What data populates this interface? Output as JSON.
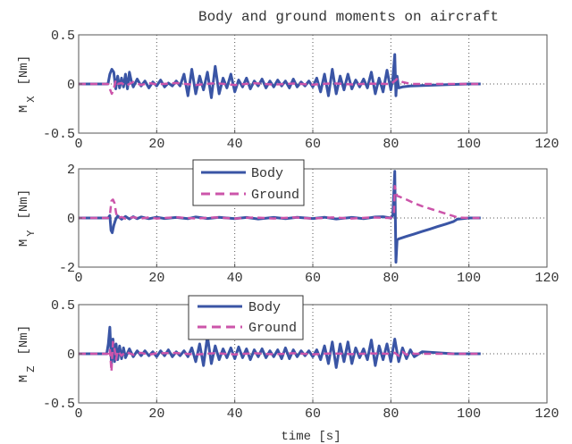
{
  "colors": {
    "body": "#3a55a5",
    "ground": "#cc55aa",
    "axis": "#555555",
    "grid": "#555555"
  },
  "figure": {
    "xlabel": "time [s]"
  },
  "chart_data": [
    {
      "type": "line",
      "title": "Body and ground moments on aircraft",
      "ylabel_main": "M",
      "ylabel_sub": "X",
      "ylabel_unit": "[Nm]",
      "xlim": [
        0,
        120
      ],
      "ylim": [
        -0.5,
        0.5
      ],
      "xticks": [
        "0",
        "20",
        "40",
        "60",
        "80",
        "100",
        "120"
      ],
      "yticks": [
        {
          "v": 0.5,
          "label": "0.5"
        },
        {
          "v": 0,
          "label": "0"
        },
        {
          "v": -0.5,
          "label": "-0.5"
        }
      ],
      "grid": true,
      "legend": null,
      "series": [
        {
          "name": "Body",
          "key": "body",
          "dashed": false,
          "x": [
            0,
            7.5,
            8,
            8.5,
            9,
            9.5,
            10,
            10.5,
            11,
            11.5,
            12,
            12.5,
            13,
            13.5,
            14,
            15,
            16,
            17,
            18,
            19,
            20,
            21,
            22,
            23,
            24,
            25,
            26,
            27,
            28,
            29,
            30,
            31,
            32,
            33,
            34,
            35,
            36,
            37,
            38,
            39,
            40,
            41,
            42,
            43,
            44,
            45,
            46,
            47,
            48,
            49,
            50,
            51,
            52,
            53,
            54,
            55,
            56,
            57,
            58,
            59,
            60,
            61,
            62,
            63,
            64,
            65,
            66,
            67,
            68,
            69,
            70,
            71,
            72,
            73,
            74,
            75,
            76,
            77,
            78,
            79,
            80,
            80.5,
            81,
            81.3,
            81.6,
            82,
            83,
            85,
            88,
            92,
            96,
            100,
            103
          ],
          "y": [
            0,
            0,
            0.1,
            0.15,
            0.12,
            -0.05,
            0.08,
            -0.04,
            0.06,
            -0.03,
            0.1,
            -0.05,
            0.12,
            0.03,
            -0.03,
            0.05,
            -0.02,
            0.03,
            -0.04,
            0.02,
            -0.02,
            0.04,
            -0.03,
            0.01,
            -0.02,
            0.03,
            -0.02,
            0.1,
            -0.12,
            0.15,
            -0.1,
            0.08,
            -0.06,
            0.12,
            -0.14,
            0.18,
            -0.1,
            0.06,
            -0.04,
            0.1,
            -0.08,
            0.04,
            -0.03,
            0.06,
            -0.05,
            0.03,
            -0.02,
            0.05,
            -0.04,
            0.03,
            -0.03,
            0.04,
            -0.02,
            0.03,
            -0.04,
            0.05,
            -0.03,
            0.02,
            -0.02,
            0.03,
            -0.03,
            0.06,
            -0.08,
            0.1,
            -0.12,
            0.15,
            -0.1,
            0.08,
            -0.06,
            0.1,
            -0.05,
            0.04,
            -0.03,
            0.05,
            -0.04,
            0.12,
            -0.1,
            0.06,
            -0.08,
            0.14,
            -0.06,
            0.05,
            0.3,
            -0.12,
            0.08,
            -0.04,
            -0.03,
            -0.02,
            -0.015,
            -0.01,
            -0.005,
            0,
            0
          ]
        },
        {
          "name": "Ground",
          "key": "ground",
          "dashed": true,
          "x": [
            0,
            7.5,
            8,
            8.5,
            9,
            9.5,
            10,
            11,
            12,
            14,
            16,
            18,
            20,
            25,
            30,
            35,
            40,
            45,
            50,
            55,
            60,
            65,
            70,
            75,
            80,
            81,
            81.5,
            82,
            83,
            84,
            85,
            86,
            88,
            103
          ],
          "y": [
            0,
            0,
            -0.05,
            -0.1,
            -0.05,
            0.04,
            0,
            0.01,
            -0.02,
            0.02,
            -0.01,
            0.01,
            -0.005,
            0.01,
            -0.01,
            0.008,
            -0.01,
            0.008,
            -0.006,
            0.005,
            -0.006,
            0.006,
            -0.005,
            0.004,
            0,
            0.03,
            0.05,
            0.04,
            0.02,
            0.01,
            0.005,
            0,
            0,
            0
          ]
        }
      ]
    },
    {
      "type": "line",
      "ylabel_main": "M",
      "ylabel_sub": "Y",
      "ylabel_unit": "[Nm]",
      "xlim": [
        0,
        120
      ],
      "ylim": [
        -2,
        2
      ],
      "xticks": [
        "0",
        "20",
        "40",
        "60",
        "80",
        "100",
        "120"
      ],
      "yticks": [
        {
          "v": 2,
          "label": "2"
        },
        {
          "v": 0,
          "label": "0"
        },
        {
          "v": -2,
          "label": "-2"
        }
      ],
      "grid": true,
      "legend": "top-left",
      "series": [
        {
          "name": "Body",
          "key": "body",
          "dashed": false,
          "x": [
            0,
            7.5,
            8,
            8.3,
            8.6,
            9,
            9.5,
            10,
            11,
            12,
            13,
            14,
            15,
            16,
            18,
            20,
            22,
            25,
            28,
            30,
            33,
            36,
            40,
            43,
            46,
            50,
            53,
            56,
            60,
            63,
            66,
            70,
            73,
            76,
            78,
            80,
            80.5,
            81,
            81.3,
            81.6,
            82,
            84,
            86,
            88,
            90,
            92,
            94,
            96,
            97,
            100,
            103
          ],
          "y": [
            0,
            0,
            0.1,
            -0.5,
            -0.6,
            -0.3,
            -0.05,
            0.08,
            -0.05,
            0.06,
            -0.04,
            0.05,
            -0.03,
            0.04,
            -0.03,
            0.03,
            -0.02,
            0.02,
            -0.03,
            0.04,
            -0.02,
            0.03,
            -0.03,
            0.02,
            -0.04,
            0.02,
            -0.03,
            0.03,
            -0.02,
            0.03,
            -0.04,
            0.02,
            -0.03,
            0.04,
            0.05,
            0,
            0.1,
            1.9,
            -1.8,
            -0.9,
            -0.85,
            -0.75,
            -0.65,
            -0.55,
            -0.45,
            -0.35,
            -0.25,
            -0.15,
            -0.05,
            0,
            0
          ]
        },
        {
          "name": "Ground",
          "key": "ground",
          "dashed": true,
          "x": [
            0,
            7.5,
            8,
            8.4,
            8.8,
            9.2,
            9.6,
            10,
            11,
            12,
            14,
            16,
            18,
            20,
            25,
            30,
            35,
            40,
            45,
            50,
            55,
            60,
            65,
            70,
            75,
            80,
            80.8,
            81,
            81.3,
            81.6,
            82,
            84,
            86,
            88,
            90,
            92,
            94,
            96,
            97,
            100,
            103
          ],
          "y": [
            0,
            0,
            0.1,
            0.7,
            0.75,
            0.6,
            0.2,
            0,
            0.04,
            -0.03,
            0.03,
            -0.02,
            0.02,
            -0.02,
            0.03,
            -0.02,
            0.02,
            -0.02,
            0.02,
            -0.02,
            0.02,
            -0.02,
            0.02,
            -0.02,
            0.02,
            0,
            0.2,
            1.3,
            1.1,
            0.9,
            0.88,
            0.75,
            0.6,
            0.48,
            0.38,
            0.28,
            0.18,
            0.08,
            0.02,
            0,
            0
          ]
        }
      ]
    },
    {
      "type": "line",
      "ylabel_main": "M",
      "ylabel_sub": "Z",
      "ylabel_unit": "[Nm]",
      "xlim": [
        0,
        120
      ],
      "ylim": [
        -0.5,
        0.5
      ],
      "xticks": [
        "0",
        "20",
        "40",
        "60",
        "80",
        "100",
        "120"
      ],
      "yticks": [
        {
          "v": 0.5,
          "label": "0.5"
        },
        {
          "v": 0,
          "label": "0"
        },
        {
          "v": -0.5,
          "label": "-0.5"
        }
      ],
      "grid": true,
      "legend": "top-left",
      "series": [
        {
          "name": "Body",
          "key": "body",
          "dashed": false,
          "x": [
            0,
            7.2,
            7.6,
            8,
            8.4,
            8.8,
            9.2,
            9.6,
            10,
            10.5,
            11,
            11.5,
            12,
            13,
            14,
            15,
            16,
            17,
            18,
            19,
            20,
            21,
            22,
            23,
            24,
            25,
            26,
            27,
            28,
            29,
            30,
            31,
            32,
            33,
            34,
            35,
            36,
            37,
            38,
            39,
            40,
            41,
            42,
            43,
            44,
            45,
            46,
            47,
            48,
            49,
            50,
            51,
            52,
            53,
            54,
            55,
            56,
            57,
            58,
            59,
            60,
            61,
            62,
            63,
            64,
            65,
            66,
            67,
            68,
            69,
            70,
            71,
            72,
            73,
            74,
            75,
            76,
            77,
            78,
            79,
            80,
            81,
            82,
            83,
            84,
            85,
            86,
            88,
            92,
            96,
            100,
            103
          ],
          "y": [
            0,
            0,
            0.1,
            0.27,
            -0.1,
            0.15,
            -0.08,
            0.1,
            -0.06,
            0.08,
            -0.05,
            0.06,
            -0.04,
            0.05,
            -0.03,
            0.03,
            -0.02,
            0.03,
            -0.02,
            0.02,
            -0.03,
            0.03,
            -0.02,
            0.04,
            -0.03,
            0.02,
            -0.02,
            0.03,
            -0.03,
            0.06,
            -0.08,
            0.1,
            -0.12,
            0.18,
            -0.1,
            0.08,
            -0.06,
            0.05,
            -0.04,
            0.06,
            -0.05,
            0.07,
            -0.04,
            0.05,
            -0.06,
            0.04,
            -0.03,
            0.05,
            -0.04,
            0.03,
            -0.03,
            0.04,
            -0.05,
            0.06,
            -0.05,
            0.04,
            -0.03,
            0.03,
            -0.02,
            0.03,
            -0.03,
            0.04,
            -0.06,
            0.08,
            -0.1,
            0.12,
            -0.14,
            0.1,
            -0.08,
            0.12,
            -0.1,
            0.06,
            -0.04,
            0.05,
            -0.06,
            0.14,
            -0.12,
            0.08,
            -0.06,
            0.1,
            -0.08,
            0.15,
            -0.08,
            0.06,
            -0.05,
            0.04,
            -0.03,
            0.02,
            0.01,
            0,
            0,
            0
          ]
        },
        {
          "name": "Ground",
          "key": "ground",
          "dashed": true,
          "x": [
            0,
            7.5,
            8,
            8.4,
            8.8,
            9.2,
            9.6,
            10,
            11,
            12,
            14,
            16,
            18,
            20,
            25,
            30,
            35,
            40,
            45,
            50,
            55,
            60,
            65,
            70,
            75,
            80,
            81,
            82,
            83,
            84,
            85,
            86,
            88,
            103
          ],
          "y": [
            0,
            0,
            0.05,
            -0.18,
            0.12,
            0.05,
            -0.06,
            0.03,
            -0.02,
            0.02,
            -0.01,
            0.01,
            -0.01,
            0.005,
            0.008,
            -0.008,
            0.006,
            -0.006,
            0.005,
            -0.005,
            0.005,
            -0.005,
            0.004,
            -0.004,
            0.004,
            0,
            0.01,
            -0.02,
            0.02,
            -0.01,
            0.01,
            0,
            0,
            0
          ]
        }
      ]
    }
  ]
}
